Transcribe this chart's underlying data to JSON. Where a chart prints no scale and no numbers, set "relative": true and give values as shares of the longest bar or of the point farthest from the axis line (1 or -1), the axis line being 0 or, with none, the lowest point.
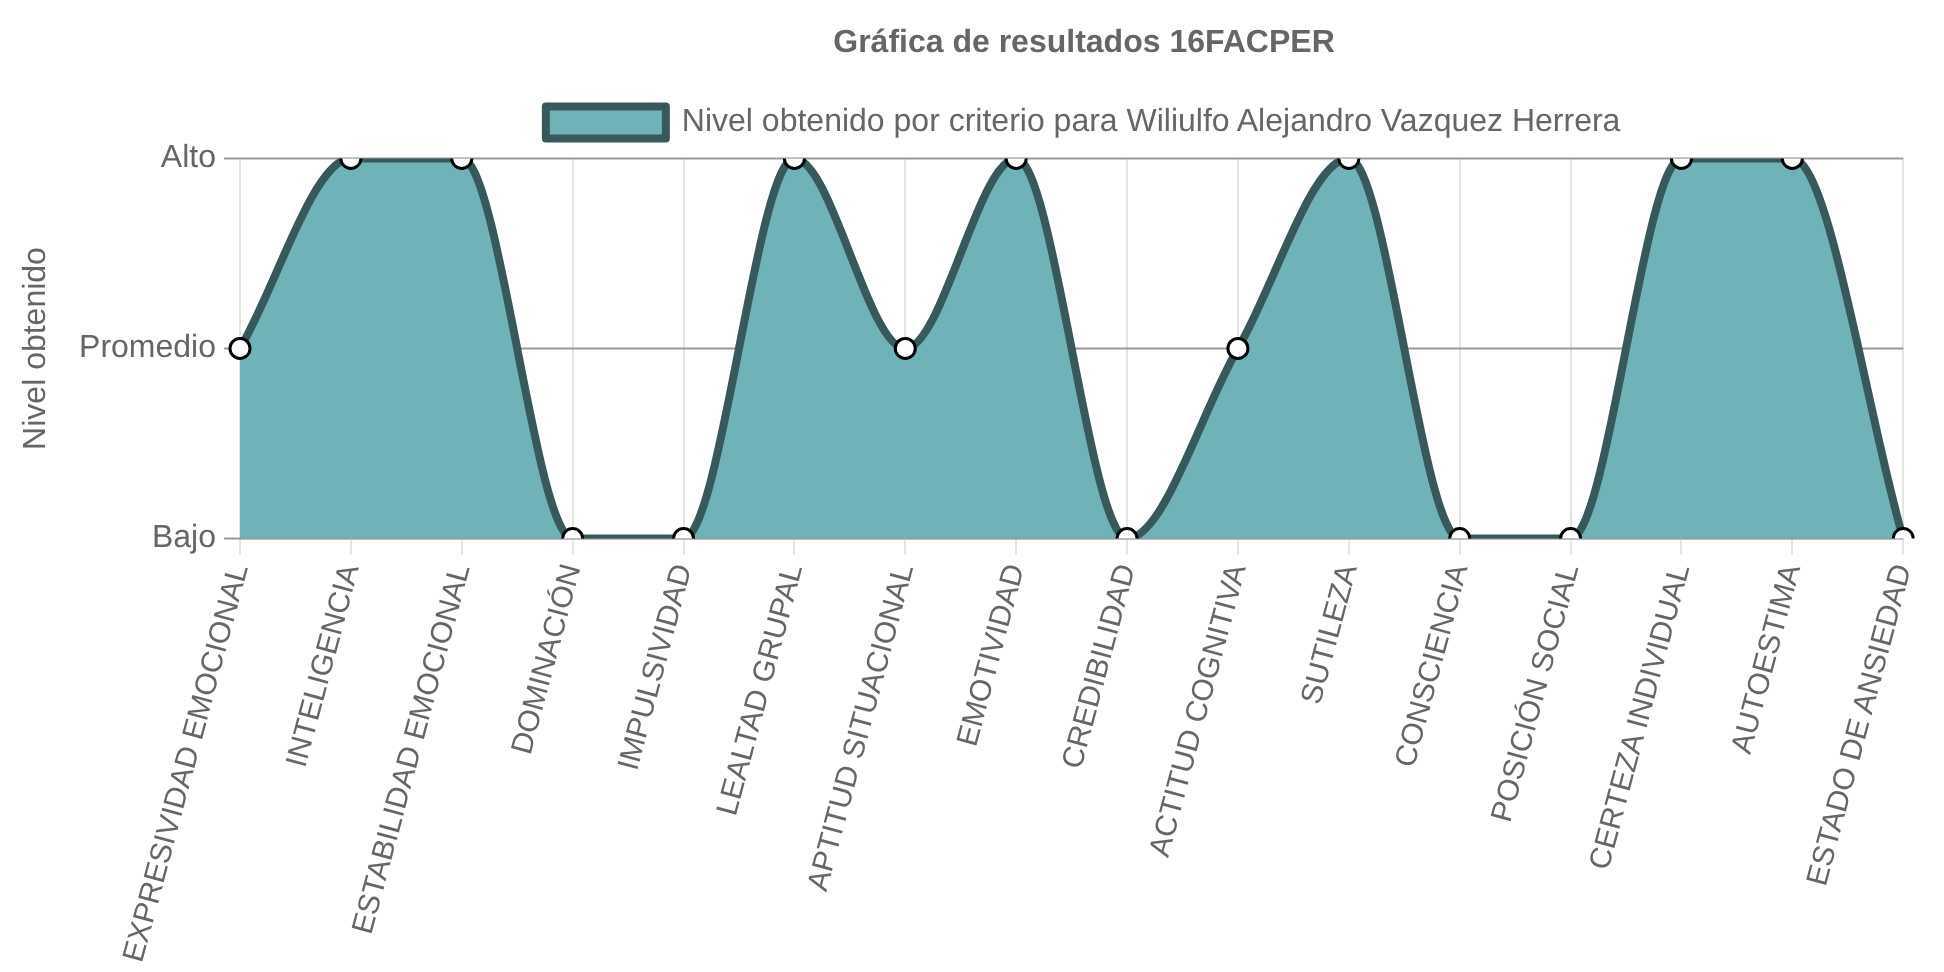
{
  "chart_data": {
    "type": "area",
    "title": "Gráfica de resultados 16FACPER",
    "ylabel": "Nivel obtenido",
    "categories": [
      "EXPRESIVIDAD EMOCIONAL",
      "INTELIGENCIA",
      "ESTABILIDAD EMOCIONAL",
      "DOMINACIÓN",
      "IMPULSIVIDAD",
      "LEALTAD GRUPAL",
      "APTITUD SITUACIONAL",
      "EMOTIVIDAD",
      "CREDIBILIDAD",
      "ACTITUD COGNITIVA",
      "SUTILEZA",
      "CONSCIENCIA",
      "POSICIÓN SOCIAL",
      "CERTEZA INDIVIDUAL",
      "AUTOESTIMA",
      "ESTADO DE ANSIEDAD"
    ],
    "series": [
      {
        "name": "Nivel obtenido por criterio para Wiliulfo Alejandro Vazquez Herrera",
        "color": "#6fb2b7",
        "values": [
          0.5,
          1,
          1,
          0,
          0,
          1,
          0.5,
          1,
          0,
          0.5,
          1,
          0,
          0,
          1,
          1,
          0
        ]
      }
    ],
    "relative": true,
    "ref_lines": [
      {
        "axis": "y",
        "value": 0,
        "label": "Bajo",
        "color": "#999999"
      },
      {
        "axis": "y",
        "value": 0.5,
        "label": "Promedio",
        "color": "#999999"
      },
      {
        "axis": "y",
        "value": 1,
        "label": "Alto",
        "color": "#999999"
      }
    ],
    "grid": "x",
    "legend": "top",
    "marker": "circle"
  }
}
